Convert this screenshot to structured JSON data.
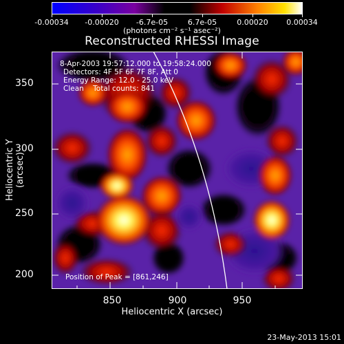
{
  "colorbar": {
    "ticks": [
      "-0.00034",
      "-0.00020",
      "-6.7e-05",
      "6.7e-05",
      "0.00020",
      "0.00034"
    ],
    "units": "(photons cm⁻² s⁻¹ asec⁻²)"
  },
  "title": "Reconstructed RHESSI Image",
  "annotations": {
    "time_range": "8-Apr-2003 19:57:12.000 to 19:58:24.000",
    "detectors": "Detectors: 4F 5F 6F 7F 8F, Att 0",
    "energy": "Energy Range: 12.0 - 25.0 keV",
    "clean": "Clean    Total counts: 841",
    "peak": "Position of Peak = [861,246]"
  },
  "axes": {
    "xlabel": "Heliocentric X (arcsec)",
    "ylabel": "Heliocentric Y (arcsec)",
    "xticks": [
      "850",
      "900",
      "950"
    ],
    "yticks": [
      "350",
      "300",
      "250",
      "200"
    ],
    "xlim": [
      800,
      990
    ],
    "ylim": [
      185,
      375
    ]
  },
  "footer": {
    "date": "23-May-2013 15:01"
  },
  "colors": {
    "background": "#000000",
    "limb": "#ffffff"
  }
}
